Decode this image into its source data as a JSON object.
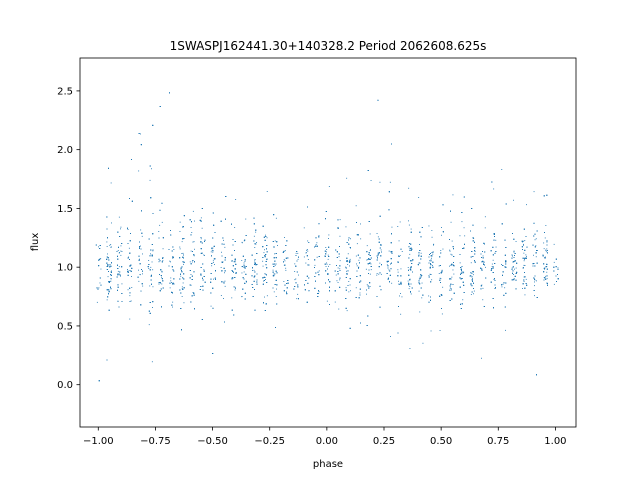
{
  "chart_data": {
    "type": "scatter",
    "title": "1SWASPJ162441.30+140328.2 Period 2062608.625s",
    "xlabel": "phase",
    "ylabel": "flux",
    "xlim": [
      -1.08,
      1.09
    ],
    "ylim": [
      -0.36,
      2.78
    ],
    "xticks": [
      -1.0,
      -0.75,
      -0.5,
      -0.25,
      0.0,
      0.25,
      0.5,
      0.75,
      1.0
    ],
    "xtick_labels": [
      "−1.00",
      "−0.75",
      "−0.50",
      "−0.25",
      "0.00",
      "0.25",
      "0.50",
      "0.75",
      "1.00"
    ],
    "yticks": [
      0.0,
      0.5,
      1.0,
      1.5,
      2.0,
      2.5
    ],
    "ytick_labels": [
      "0.0",
      "0.5",
      "1.0",
      "1.5",
      "2.0",
      "2.5"
    ],
    "grid": false,
    "marker_color": "#1f77b4",
    "phase_range": [
      -1.0,
      1.0
    ],
    "baseline_flux": 1.0,
    "series": [
      {
        "x": [
          -0.95,
          -0.9,
          -0.85,
          -0.8,
          -0.75,
          -0.7,
          -0.6,
          -0.5,
          -0.4,
          -0.3,
          -0.2,
          -0.1,
          0.05,
          0.15,
          0.25,
          0.3,
          0.4,
          0.5,
          0.6,
          0.7,
          0.8,
          0.9
        ],
        "y": [
          1.0,
          1.05,
          1.1,
          1.2,
          1.15,
          1.1,
          1.0,
          1.0,
          0.95,
          1.05,
          1.0,
          1.0,
          1.0,
          1.05,
          1.2,
          1.15,
          1.05,
          1.0,
          1.05,
          1.0,
          1.0,
          1.0
        ]
      }
    ]
  }
}
